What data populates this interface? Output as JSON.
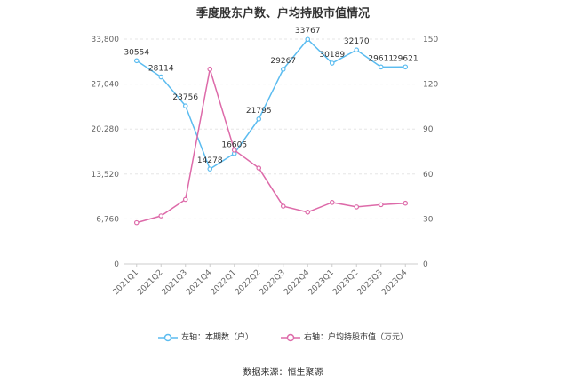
{
  "chart_data": {
    "type": "line",
    "title": "季度股东户数、户均持股市值情况",
    "categories": [
      "2021Q1",
      "2021Q2",
      "2021Q3",
      "2021Q4",
      "2022Q1",
      "2022Q2",
      "2022Q3",
      "2022Q4",
      "2023Q1",
      "2023Q2",
      "2023Q3",
      "2023Q4"
    ],
    "y_left": {
      "ticks": [
        "0",
        "6,760",
        "13,520",
        "20,280",
        "27,040",
        "33,800"
      ],
      "range": [
        0,
        33800
      ]
    },
    "y_right": {
      "ticks": [
        "0",
        "30",
        "60",
        "90",
        "120",
        "150"
      ],
      "range": [
        0,
        150
      ]
    },
    "series": [
      {
        "name": "左轴：本期数（户）",
        "axis": "left",
        "color": "#5bbcf0",
        "values": [
          30554,
          28114,
          23756,
          14278,
          16605,
          21795,
          29267,
          33767,
          30189,
          32170,
          29611,
          29621
        ],
        "labels": [
          "30554",
          "28114",
          "23756",
          "14278",
          "16605",
          "21795",
          "29267",
          "33767",
          "30189",
          "32170",
          "29611",
          "29621"
        ]
      },
      {
        "name": "右轴：户均持股市值（万元）",
        "axis": "right",
        "color": "#dd6aa9",
        "values": [
          27.5,
          32,
          43,
          130,
          76,
          64,
          38.5,
          34.5,
          41,
          38,
          39.5,
          40.5
        ]
      }
    ],
    "grid": true,
    "legend_position": "bottom"
  },
  "source": "数据来源：恒生聚源"
}
